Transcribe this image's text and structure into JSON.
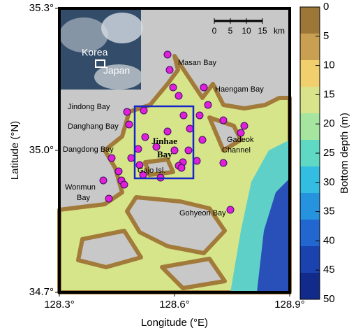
{
  "map": {
    "xlabel": "Longitude (°E)",
    "ylabel": "Latitude (°N)",
    "xlim": [
      128.3,
      128.9
    ],
    "ylim": [
      34.7,
      35.3
    ],
    "xticks": [
      {
        "value": 128.3,
        "label": "128.3°"
      },
      {
        "value": 128.6,
        "label": "128.6°"
      },
      {
        "value": 128.9,
        "label": "128.9°"
      }
    ],
    "yticks": [
      {
        "value": 34.7,
        "label": "34.7°"
      },
      {
        "value": 35.0,
        "label": "35.0°"
      },
      {
        "value": 35.3,
        "label": "35.3°"
      }
    ],
    "places": [
      [
        "Masan Bay"
      ],
      [
        "Haengam Bay"
      ],
      [
        "Jindong Bay"
      ],
      [
        "Danghang Bay"
      ],
      [
        "Dangdong Bay"
      ],
      [
        "Jinhae",
        "Bay"
      ],
      [
        "Gadeok",
        "Channel"
      ],
      [
        "Gajo Isl."
      ],
      [
        "Wonmun",
        "Bay"
      ],
      [
        "Gohyeon Bay"
      ]
    ],
    "inset": {
      "labels": [
        "Korea",
        "Japan"
      ]
    },
    "scale_bar": {
      "ticks": [
        0,
        5,
        10,
        15
      ],
      "unit": "km"
    }
  },
  "colorbar": {
    "label": "Bottom depth (m)",
    "clim": [
      0,
      50
    ],
    "ticks": [
      0,
      5,
      10,
      15,
      20,
      25,
      30,
      35,
      40,
      45,
      50
    ],
    "colors": [
      "#9c7738",
      "#c9a052",
      "#f1cf6c",
      "#d9e38a",
      "#a6e5a0",
      "#5fd8c4",
      "#33bde0",
      "#2693de",
      "#2266cf",
      "#1a43b0",
      "#122a8a"
    ]
  }
}
